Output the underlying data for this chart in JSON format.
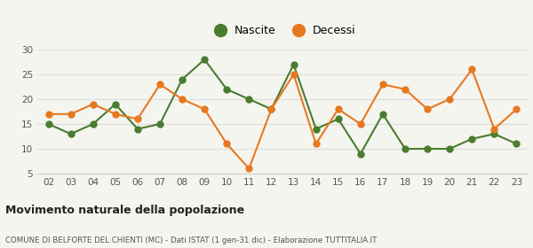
{
  "years": [
    "02",
    "03",
    "04",
    "05",
    "06",
    "07",
    "08",
    "09",
    "10",
    "11",
    "12",
    "13",
    "14",
    "15",
    "16",
    "17",
    "18",
    "19",
    "20",
    "21",
    "22",
    "23"
  ],
  "nascite": [
    15,
    13,
    15,
    19,
    14,
    15,
    24,
    28,
    22,
    20,
    18,
    27,
    14,
    16,
    9,
    17,
    10,
    10,
    10,
    12,
    13,
    11
  ],
  "decessi": [
    17,
    17,
    19,
    17,
    16,
    23,
    20,
    18,
    11,
    6,
    18,
    25,
    11,
    18,
    15,
    23,
    22,
    18,
    20,
    26,
    14,
    18
  ],
  "nascite_color": "#4a7c2f",
  "decessi_color": "#e87820",
  "background_color": "#f5f5f0",
  "grid_color": "#dddddd",
  "ylim": [
    5,
    30
  ],
  "yticks": [
    5,
    10,
    15,
    20,
    25,
    30
  ],
  "title": "Movimento naturale della popolazione",
  "subtitle": "COMUNE DI BELFORTE DEL CHIENTI (MC) - Dati ISTAT (1 gen-31 dic) - Elaborazione TUTTITALIA.IT",
  "legend_nascite": "Nascite",
  "legend_decessi": "Decessi",
  "marker_size": 5,
  "line_width": 1.5
}
